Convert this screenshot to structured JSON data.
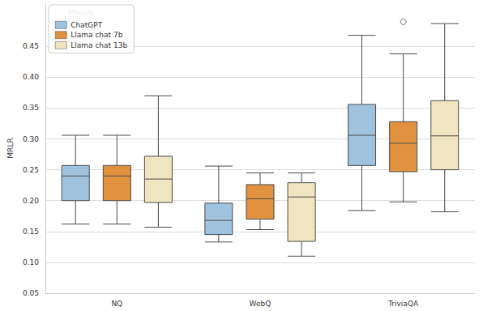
{
  "chart_data": {
    "type": "boxplot",
    "ylabel": "MRLR",
    "legend_title": "Models",
    "legend": "upper left",
    "grid": true,
    "categories": [
      "NQ",
      "WebQ",
      "TriviaQA"
    ],
    "ylim": [
      0.05,
      0.52
    ],
    "yticks": [
      {
        "value": 0.05,
        "label": "0.05"
      },
      {
        "value": 0.1,
        "label": "0.10"
      },
      {
        "value": 0.15,
        "label": "0.15"
      },
      {
        "value": 0.2,
        "label": "0.20"
      },
      {
        "value": 0.25,
        "label": "0.25"
      },
      {
        "value": 0.3,
        "label": "0.30"
      },
      {
        "value": 0.35,
        "label": "0.35"
      },
      {
        "value": 0.4,
        "label": "0.40"
      },
      {
        "value": 0.45,
        "label": "0.45"
      }
    ],
    "series": [
      {
        "name": "ChatGPT",
        "color": "#9fc3df",
        "values": [
          [
            0.162,
            0.2,
            0.24,
            0.257,
            0.306
          ],
          [
            0.133,
            0.145,
            0.168,
            0.196,
            0.256
          ],
          [
            0.184,
            0.257,
            0.306,
            0.356,
            0.468
          ]
        ],
        "outliers": [
          [],
          [],
          []
        ]
      },
      {
        "name": "Llama chat 7b",
        "color": "#e2913f",
        "values": [
          [
            0.162,
            0.2,
            0.24,
            0.257,
            0.306
          ],
          [
            0.153,
            0.17,
            0.203,
            0.226,
            0.245
          ],
          [
            0.198,
            0.247,
            0.293,
            0.328,
            0.438
          ]
        ],
        "outliers": [
          [],
          [],
          [
            0.49
          ]
        ]
      },
      {
        "name": "Llama chat 13b",
        "color": "#efe5c0",
        "values": [
          [
            0.157,
            0.197,
            0.235,
            0.272,
            0.37
          ],
          [
            0.11,
            0.134,
            0.206,
            0.229,
            0.245
          ],
          [
            0.182,
            0.25,
            0.305,
            0.362,
            0.487
          ]
        ],
        "outliers": [
          [],
          [],
          []
        ]
      }
    ]
  }
}
